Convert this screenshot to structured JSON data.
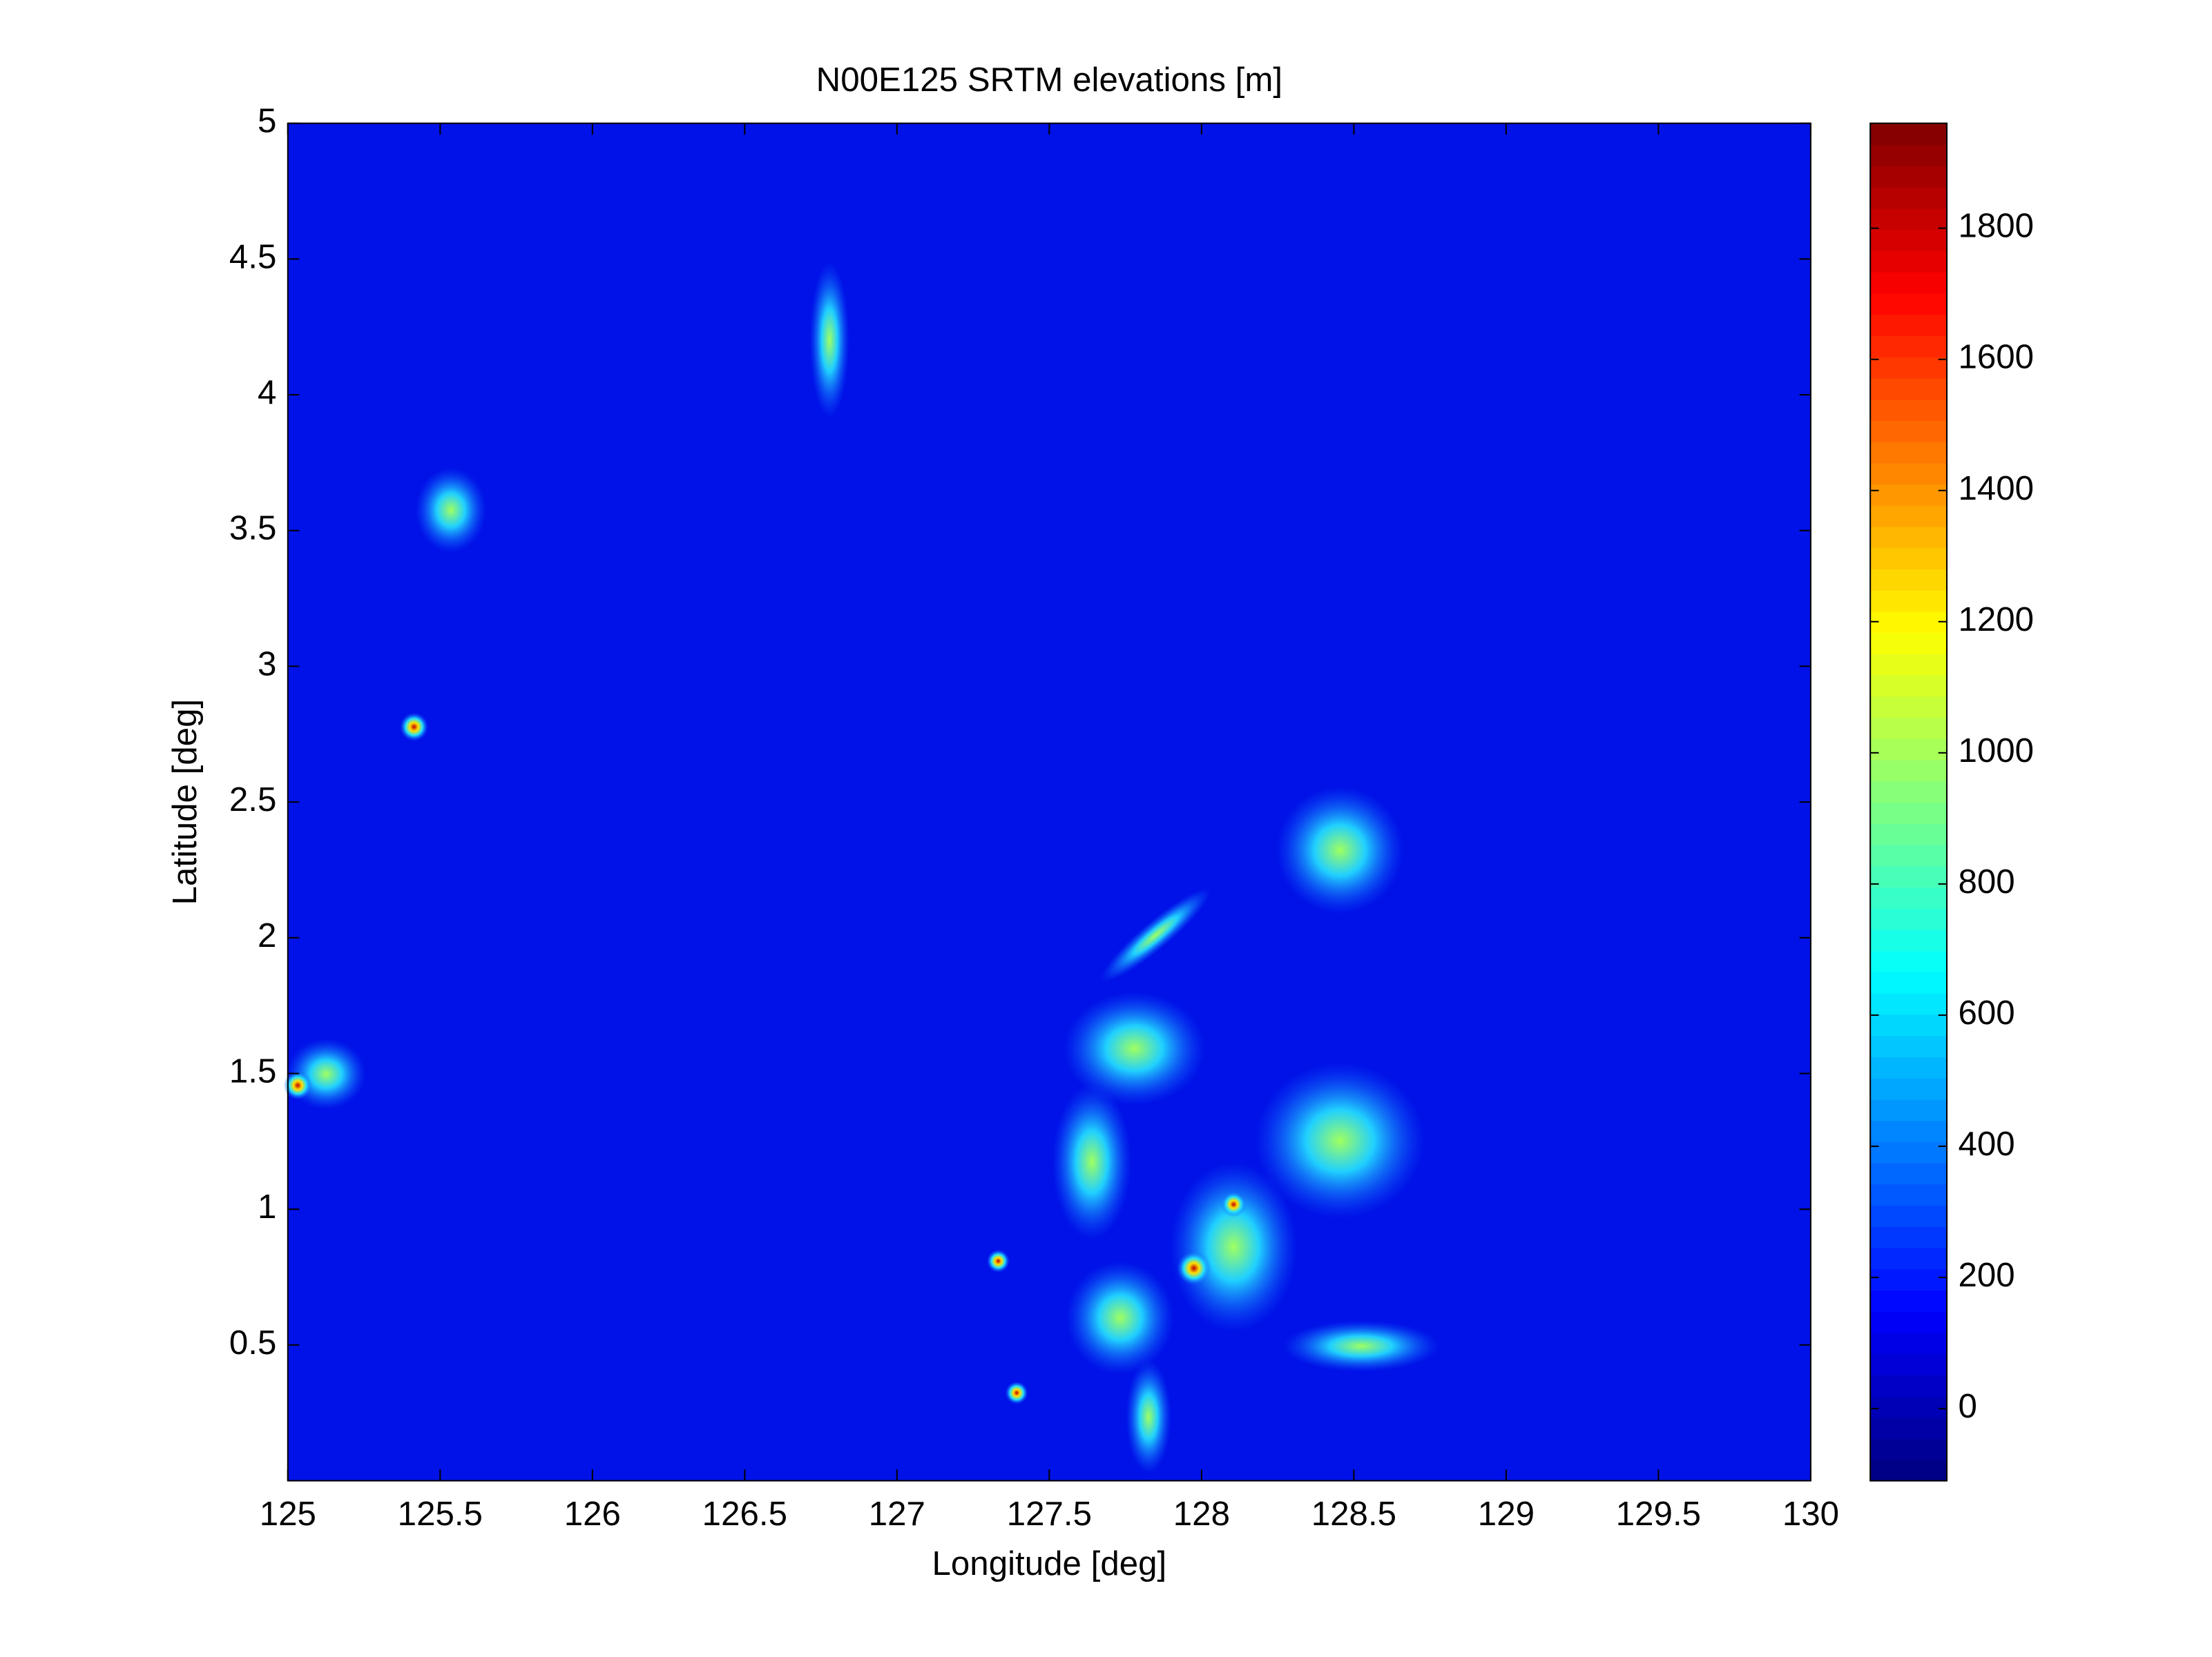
{
  "chart_data": {
    "type": "heatmap",
    "title": "N00E125 SRTM elevations [m]",
    "x_label": "Longitude [deg]",
    "y_label": "Latitude [deg]",
    "xlim": [
      125,
      130
    ],
    "ylim": [
      0,
      5
    ],
    "xticks": [
      125,
      125.5,
      126,
      126.5,
      127,
      127.5,
      128,
      128.5,
      129,
      129.5,
      130
    ],
    "yticks": [
      0.5,
      1,
      1.5,
      2,
      2.5,
      3,
      3.5,
      4,
      4.5,
      5
    ],
    "colormap": "jet",
    "background_color": "#0012e8",
    "clim": [
      -110,
      1960
    ],
    "colorbar_ticks": [
      0,
      200,
      400,
      600,
      800,
      1000,
      1200,
      1400,
      1600,
      1800
    ]
  }
}
